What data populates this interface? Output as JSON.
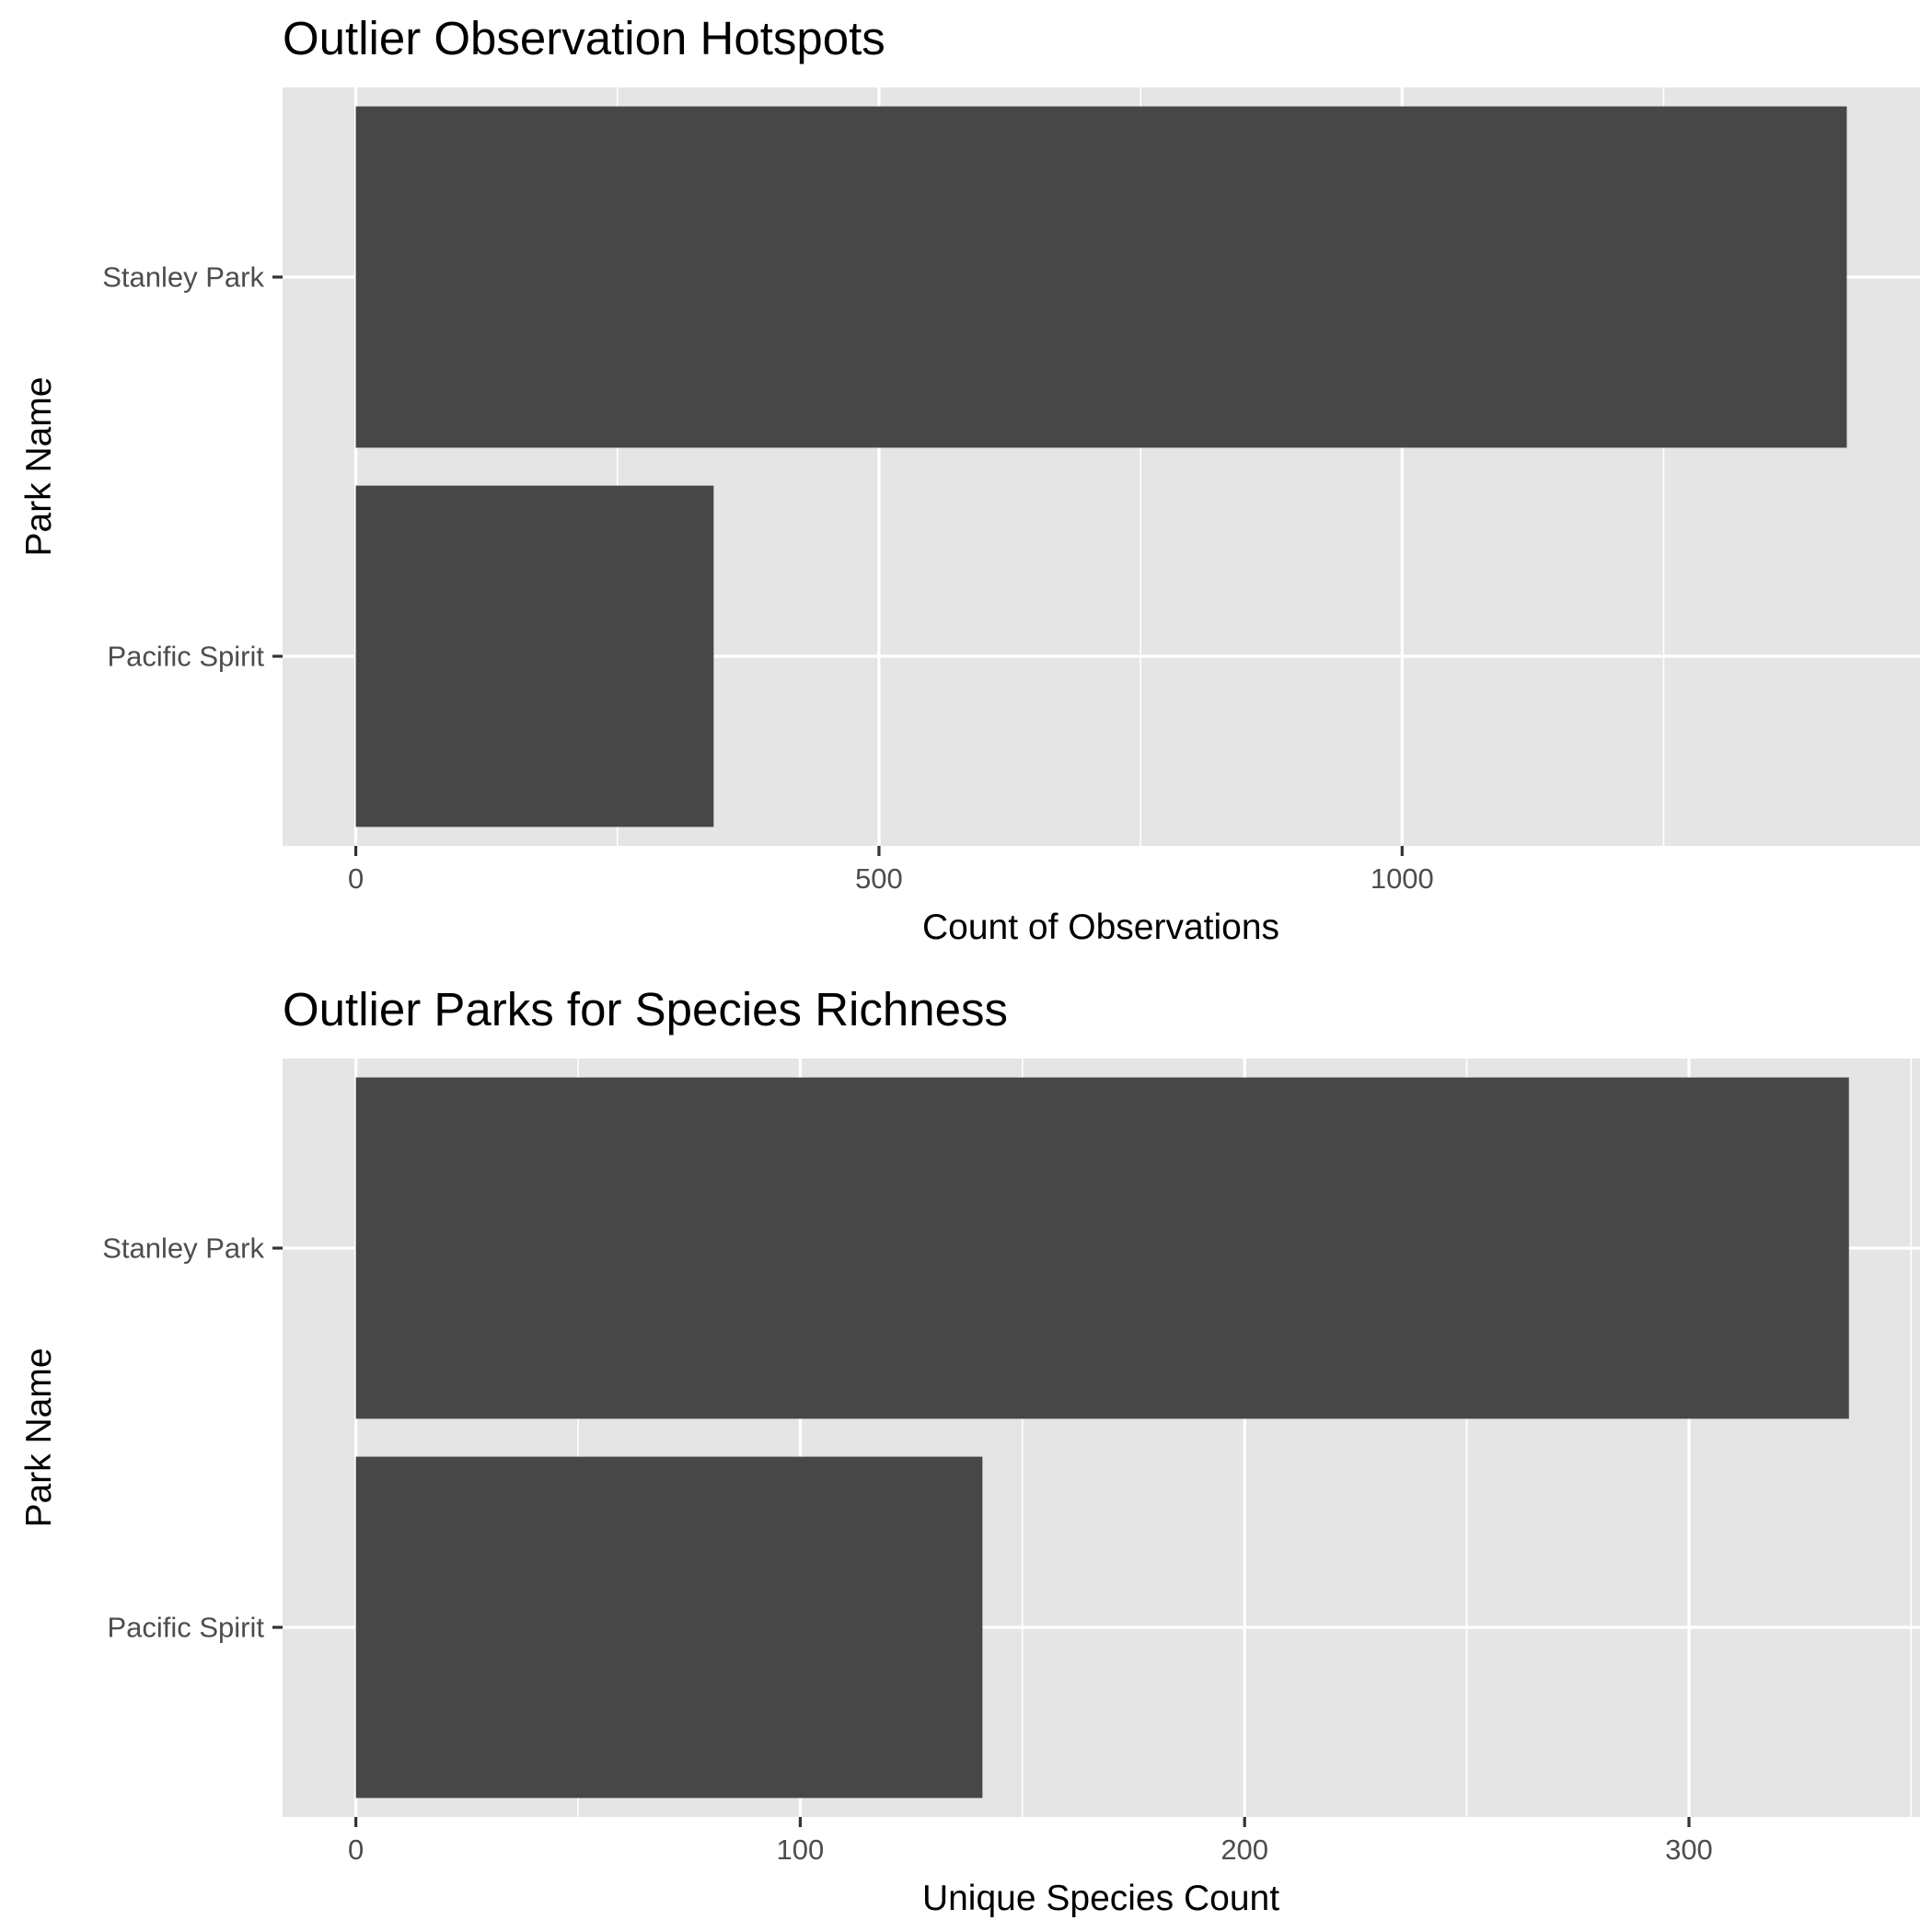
{
  "chart_data": [
    {
      "type": "bar",
      "orientation": "horizontal",
      "title": "Outlier Observation Hotspots",
      "xlabel": "Count of Observations",
      "ylabel": "Park Name",
      "categories": [
        "Pacific Spirit",
        "Stanley Park"
      ],
      "values": [
        342,
        1425
      ],
      "xlim": [
        -70,
        1495
      ],
      "xticks": [
        0,
        500,
        1000
      ],
      "xtick_labels": [
        "0",
        "500",
        "1000"
      ],
      "x_minor_gridlines": [
        250,
        750,
        1250
      ],
      "bar_color": "#474747",
      "panel_background": "#e5e5e5",
      "grid": true
    },
    {
      "type": "bar",
      "orientation": "horizontal",
      "title": "Outlier Parks for Species Richness",
      "xlabel": "Unique Species Count",
      "ylabel": "Park Name",
      "categories": [
        "Pacific Spirit",
        "Stanley Park"
      ],
      "values": [
        141,
        336
      ],
      "xlim": [
        -16.5,
        352
      ],
      "xticks": [
        0,
        100,
        200,
        300
      ],
      "xtick_labels": [
        "0",
        "100",
        "200",
        "300"
      ],
      "x_minor_gridlines": [
        50,
        150,
        250,
        350
      ],
      "bar_color": "#474747",
      "panel_background": "#e5e5e5",
      "grid": true
    }
  ]
}
